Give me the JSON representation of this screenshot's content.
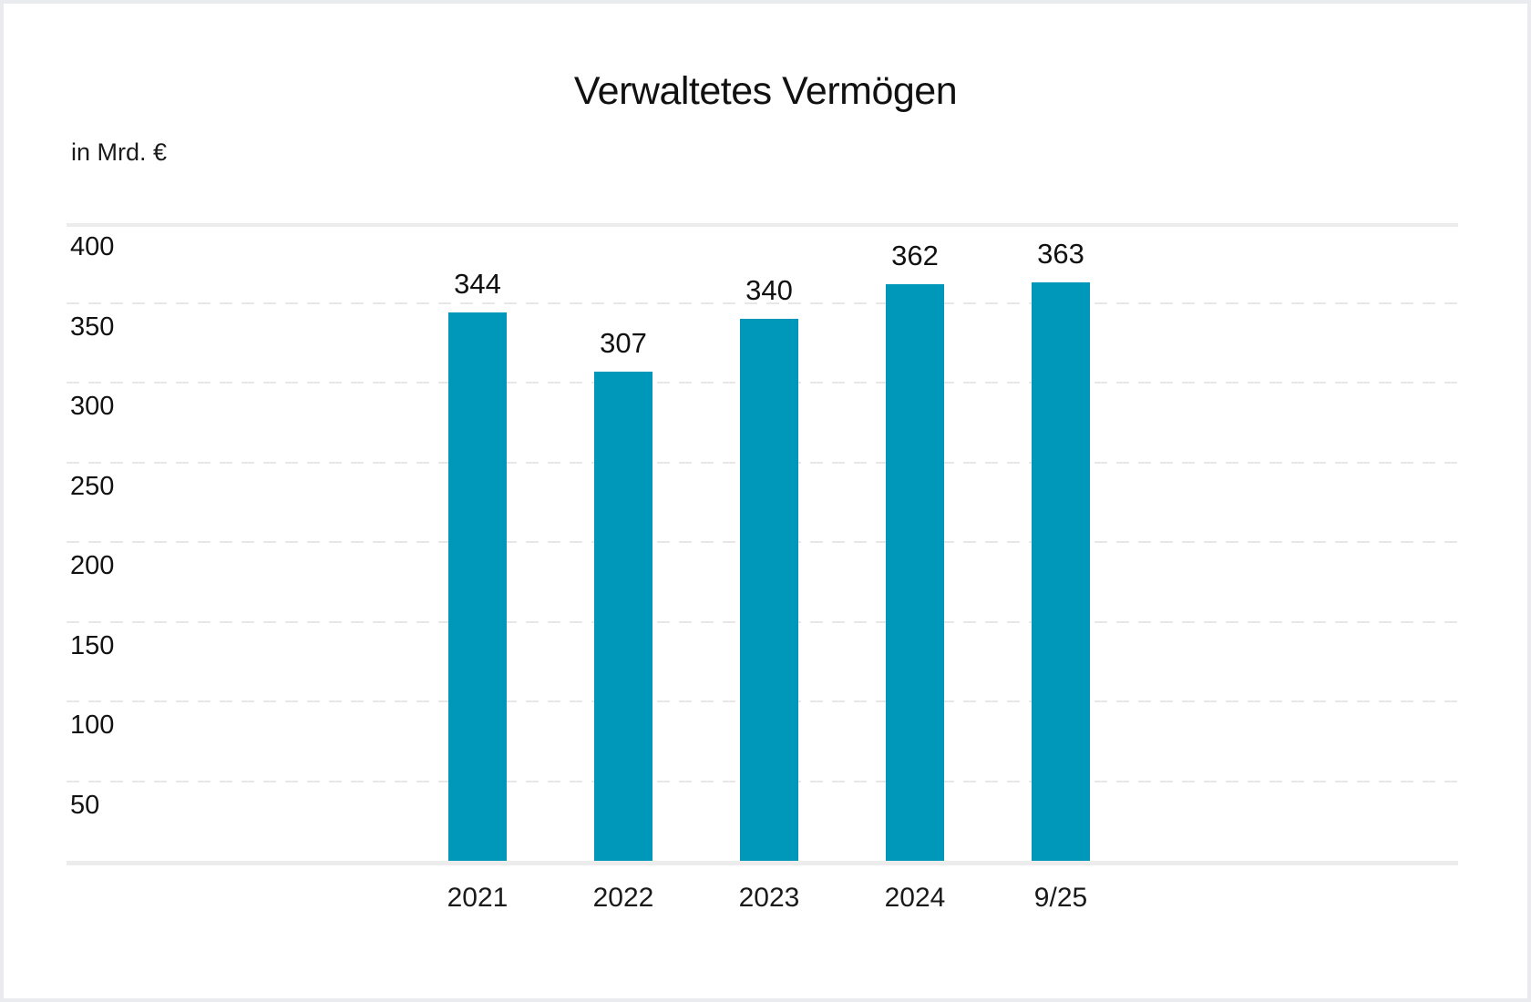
{
  "chart_data": {
    "type": "bar",
    "title": "Verwaltetes Vermögen",
    "unit_label": "in Mrd. €",
    "categories": [
      "2021",
      "2022",
      "2023",
      "2024",
      "9/25"
    ],
    "values": [
      344,
      307,
      340,
      362,
      363
    ],
    "y_ticks": [
      50,
      100,
      150,
      200,
      250,
      300,
      350,
      400
    ],
    "ylim": [
      0,
      400
    ],
    "xlabel": "",
    "ylabel": "in Mrd. €",
    "grid": "horizontal-dashed",
    "legend": "none",
    "bar_color": "#0098ba",
    "grid_color": "#e7e7e7",
    "axis_color": "#ececec",
    "text_color": "#111111"
  }
}
